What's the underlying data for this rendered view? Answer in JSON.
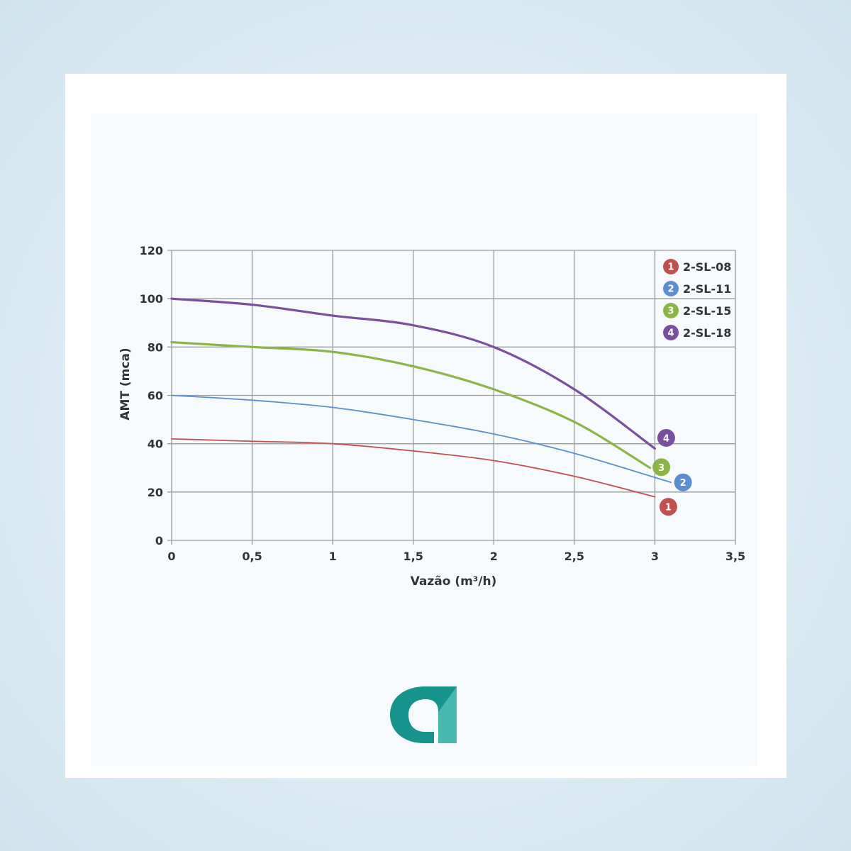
{
  "chart_data": {
    "type": "line",
    "xlabel": "Vazão (m³/h)",
    "ylabel": "AMT (mca)",
    "xlim": [
      0,
      3.5
    ],
    "ylim": [
      0,
      120
    ],
    "x_ticks": [
      "0",
      "0,5",
      "1",
      "1,5",
      "2",
      "2,5",
      "3",
      "3,5"
    ],
    "y_ticks": [
      "0",
      "20",
      "40",
      "60",
      "80",
      "100",
      "120"
    ],
    "grid": true,
    "legend_position": "top-right",
    "series": [
      {
        "name": "2-SL-08",
        "number": "1",
        "color": "#c0504d",
        "x": [
          0,
          0.5,
          1,
          1.5,
          2,
          2.5,
          3
        ],
        "y": [
          42,
          41,
          40,
          37,
          33,
          26.5,
          18
        ]
      },
      {
        "name": "2-SL-11",
        "number": "2",
        "color": "#5b8ed1",
        "x": [
          0,
          0.5,
          1,
          1.5,
          2,
          2.5,
          3.1
        ],
        "y": [
          60,
          58,
          55,
          50,
          44,
          36,
          24
        ]
      },
      {
        "name": "2-SL-15",
        "number": "3",
        "color": "#8db449",
        "x": [
          0,
          0.5,
          1,
          1.5,
          2,
          2.5,
          2.97
        ],
        "y": [
          82,
          80,
          78,
          72,
          62.5,
          49,
          30
        ]
      },
      {
        "name": "2-SL-18",
        "number": "4",
        "color": "#7a4f9e",
        "x": [
          0,
          0.5,
          1,
          1.5,
          2,
          2.5,
          3
        ],
        "y": [
          100,
          97.5,
          93,
          89,
          80,
          62.5,
          38
        ]
      }
    ]
  },
  "brand": {
    "logo_color": "#1d9a92"
  }
}
